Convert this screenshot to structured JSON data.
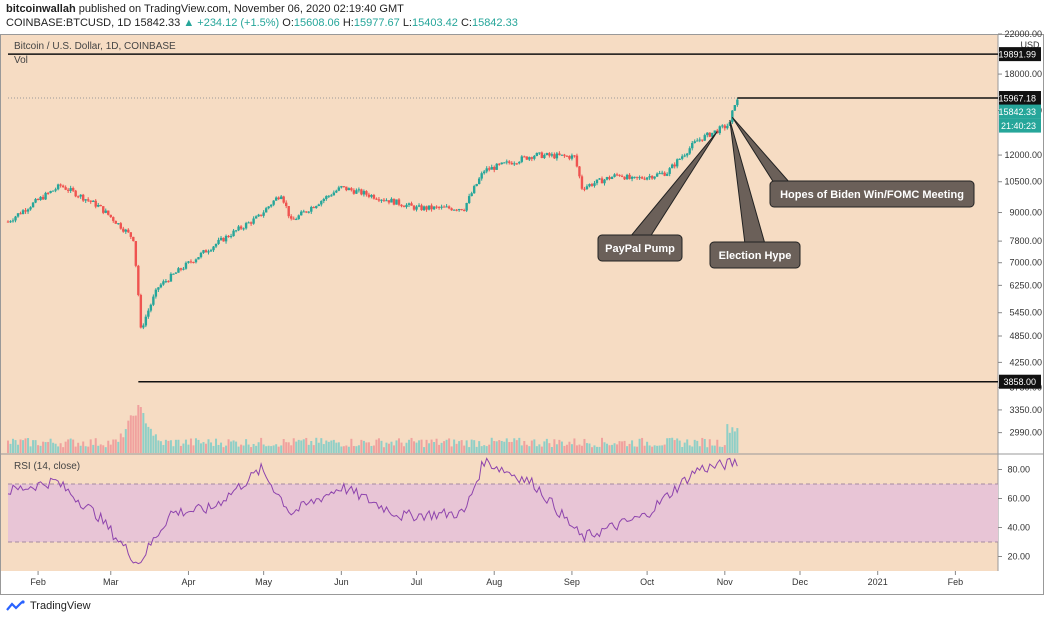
{
  "header": {
    "author": "bitcoinwallah",
    "published": "published on TradingView.com, November 06, 2020 02:19:40 GMT",
    "symbol": "COINBASE:BTCUSD, 1D",
    "close_inline": "15842.33",
    "change": "▲ +234.12 (+1.5%)",
    "o_label": "O:",
    "o": "15608.06",
    "h_label": "H:",
    "h": "15977.67",
    "l_label": "L:",
    "l": "15403.42",
    "c_label": "C:",
    "c": "15842.33"
  },
  "pane_title": "Bitcoin / U.S. Dollar, 1D, COINBASE",
  "vol_label": "Vol",
  "rsi_label": "RSI (14, close)",
  "axis_unit": "USD",
  "footer_brand": "TradingView",
  "colors": {
    "background": "#f6dcc3",
    "up": "#26a69a",
    "down": "#ef5350",
    "rsi_line": "#8e44ad",
    "rsi_band": "#e8c5d6",
    "annotation": "#6b6059",
    "marker": "#111111"
  },
  "chart_data": {
    "type": "candlestick",
    "instrument": "Bitcoin / U.S. Dollar",
    "timeframe": "1D",
    "x_ticks": [
      "Feb",
      "Mar",
      "Apr",
      "May",
      "Jun",
      "Jul",
      "Aug",
      "Sep",
      "Oct",
      "Nov",
      "Dec",
      "2021",
      "Feb"
    ],
    "y_ticks": [
      "22000.00",
      "18000.00",
      "15000.00",
      "12000.00",
      "10500.00",
      "9000.00",
      "7800.00",
      "7000.00",
      "6250.00",
      "5450.00",
      "4850.00",
      "4250.00",
      "3750.00",
      "3350.00",
      "2990.00"
    ],
    "y_scale": "log",
    "ylim": [
      2700,
      22000
    ],
    "price_markers": [
      {
        "label": "19891.99",
        "value": 19891.99
      },
      {
        "label": "15967.18",
        "value": 15967.18
      },
      {
        "label": "15842.33",
        "value": 15842.33
      },
      {
        "label": "3858.00",
        "value": 3858.0
      }
    ],
    "countdown": "21:40:23",
    "anchors": [
      {
        "date": "2020-01-20",
        "close": 8600
      },
      {
        "date": "2020-02-10",
        "close": 10300
      },
      {
        "date": "2020-02-25",
        "close": 9300
      },
      {
        "date": "2020-03-10",
        "close": 7900
      },
      {
        "date": "2020-03-13",
        "close": 5000
      },
      {
        "date": "2020-03-20",
        "close": 6200
      },
      {
        "date": "2020-04-06",
        "close": 7300
      },
      {
        "date": "2020-04-29",
        "close": 8800
      },
      {
        "date": "2020-05-08",
        "close": 9900
      },
      {
        "date": "2020-05-12",
        "close": 8600
      },
      {
        "date": "2020-06-01",
        "close": 10200
      },
      {
        "date": "2020-07-01",
        "close": 9200
      },
      {
        "date": "2020-07-20",
        "close": 9200
      },
      {
        "date": "2020-07-28",
        "close": 11100
      },
      {
        "date": "2020-08-17",
        "close": 12000
      },
      {
        "date": "2020-09-02",
        "close": 11900
      },
      {
        "date": "2020-09-05",
        "close": 10200
      },
      {
        "date": "2020-09-20",
        "close": 10900
      },
      {
        "date": "2020-09-25",
        "close": 10600
      },
      {
        "date": "2020-10-09",
        "close": 11000
      },
      {
        "date": "2020-10-21",
        "close": 12900
      },
      {
        "date": "2020-11-03",
        "close": 14000
      },
      {
        "date": "2020-11-05",
        "close": 15600
      },
      {
        "date": "2020-11-06",
        "close": 15842.33
      }
    ],
    "volume_scale": [
      0,
      1
    ],
    "rsi": {
      "ylim": [
        10,
        90
      ],
      "y_ticks": [
        "80.00",
        "60.00",
        "40.00",
        "20.00"
      ],
      "band": [
        30,
        70
      ],
      "anchors": [
        {
          "date": "2020-01-20",
          "value": 65
        },
        {
          "date": "2020-02-08",
          "value": 72
        },
        {
          "date": "2020-02-25",
          "value": 48
        },
        {
          "date": "2020-03-12",
          "value": 15
        },
        {
          "date": "2020-03-25",
          "value": 50
        },
        {
          "date": "2020-04-10",
          "value": 53
        },
        {
          "date": "2020-04-30",
          "value": 80
        },
        {
          "date": "2020-05-12",
          "value": 50
        },
        {
          "date": "2020-06-01",
          "value": 68
        },
        {
          "date": "2020-06-25",
          "value": 48
        },
        {
          "date": "2020-07-20",
          "value": 50
        },
        {
          "date": "2020-07-28",
          "value": 86
        },
        {
          "date": "2020-08-17",
          "value": 70
        },
        {
          "date": "2020-09-05",
          "value": 33
        },
        {
          "date": "2020-09-30",
          "value": 48
        },
        {
          "date": "2020-10-21",
          "value": 80
        },
        {
          "date": "2020-11-06",
          "value": 85
        }
      ]
    },
    "annotations": [
      {
        "text": "PayPal Pump",
        "date": "2020-10-21"
      },
      {
        "text": "Election Hype",
        "date": "2020-11-03"
      },
      {
        "text": "Hopes of Biden Win/FOMC Meeting",
        "date": "2020-11-04"
      }
    ]
  }
}
